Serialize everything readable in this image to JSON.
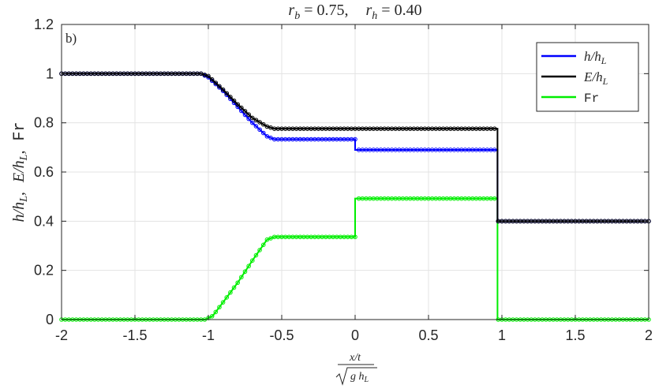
{
  "chart_data": {
    "type": "line",
    "title": "r_b = 0.75,    r_h = 0.40",
    "panel_label": "b)",
    "xlabel": "x/t / sqrt(g h_L)",
    "ylabel": "h/h_L,  E/h_L,  Fr",
    "xlim": [
      -2,
      2
    ],
    "ylim": [
      0,
      1.2
    ],
    "xticks": [
      -2,
      -1.5,
      -1,
      -0.5,
      0,
      0.5,
      1,
      1.5,
      2
    ],
    "xtick_labels": [
      "-2",
      "-1.5",
      "-1",
      "-0.5",
      "0",
      "0.5",
      "1",
      "1.5",
      "2"
    ],
    "yticks": [
      0,
      0.2,
      0.4,
      0.6,
      0.8,
      1,
      1.2
    ],
    "ytick_labels": [
      "0",
      "0.2",
      "0.4",
      "0.6",
      "0.8",
      "1",
      "1.2"
    ],
    "grid": true,
    "legend_position": "top-right",
    "series": [
      {
        "name": "h/h_L",
        "color": "#0000ff",
        "x": [
          -2,
          -1.05,
          -1.0,
          -0.9,
          -0.8,
          -0.7,
          -0.6,
          -0.55,
          0,
          0,
          0.97,
          0.97,
          2
        ],
        "y": [
          1,
          1,
          0.985,
          0.93,
          0.865,
          0.8,
          0.745,
          0.733,
          0.733,
          0.69,
          0.69,
          0.4,
          0.4
        ]
      },
      {
        "name": "E/h_L",
        "color": "#000000",
        "x": [
          -2,
          -1.05,
          -1.0,
          -0.9,
          -0.8,
          -0.7,
          -0.6,
          -0.55,
          0.97,
          0.97,
          2
        ],
        "y": [
          1,
          1,
          0.99,
          0.935,
          0.875,
          0.82,
          0.785,
          0.776,
          0.776,
          0.4,
          0.4
        ]
      },
      {
        "name": "Fr",
        "color": "#00ee00",
        "x": [
          -2,
          -1.02,
          -0.97,
          -0.9,
          -0.8,
          -0.7,
          -0.6,
          -0.55,
          0,
          0,
          0.97,
          0.97,
          2
        ],
        "y": [
          0,
          0,
          0.015,
          0.07,
          0.15,
          0.24,
          0.325,
          0.336,
          0.336,
          0.492,
          0.492,
          0,
          0
        ]
      }
    ]
  },
  "labels": {
    "title_r": "r",
    "title_b": "b",
    "title_eq1": " = 0.75,",
    "title_r2": "r",
    "title_h": "h",
    "title_eq2": " = 0.40",
    "panel": "b)",
    "xlabel_num": "x/t",
    "xlabel_den_g": "g h",
    "xlabel_den_L": "L",
    "ylabel_h": "h/h",
    "ylabel_L1": "L",
    "ylabel_comma1": ",",
    "ylabel_E": "E/h",
    "ylabel_L2": "L",
    "ylabel_comma2": ",",
    "ylabel_fr": "Fr",
    "legend_h": "h/h",
    "legend_h_sub": "L",
    "legend_E": "E/h",
    "legend_E_sub": "L",
    "legend_fr": "Fr"
  }
}
